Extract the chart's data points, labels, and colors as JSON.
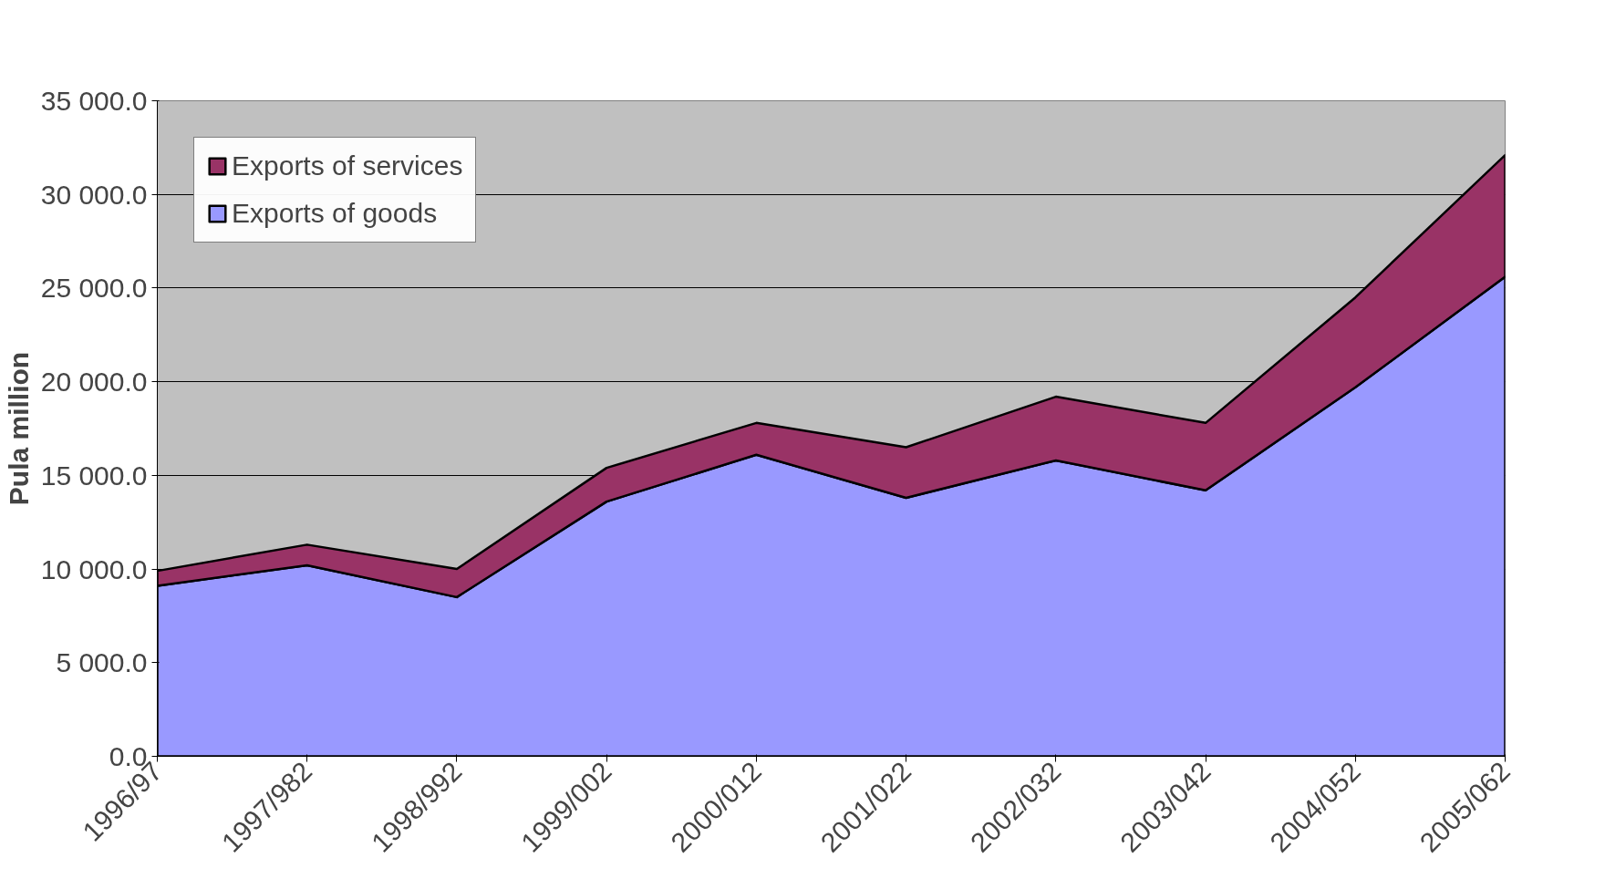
{
  "chart_data": {
    "type": "area",
    "stacked": true,
    "ylabel": "Pula million",
    "categories": [
      "1996/97",
      "1997/982",
      "1998/992",
      "1999/002",
      "2000/012",
      "2001/022",
      "2002/032",
      "2003/042",
      "2004/052",
      "2005/062"
    ],
    "series": [
      {
        "name": "Exports of goods",
        "color": "#9999ff",
        "values": [
          9100,
          10200,
          8500,
          13600,
          16100,
          13800,
          15800,
          14200,
          19700,
          25600
        ]
      },
      {
        "name": "Exports of services",
        "color": "#993366",
        "values": [
          800,
          1100,
          1500,
          1800,
          1700,
          2700,
          3400,
          3600,
          4800,
          6500
        ]
      }
    ],
    "ylim": [
      0,
      35000
    ],
    "yticks": [
      {
        "value": 0,
        "label": "0.0"
      },
      {
        "value": 5000,
        "label": "5 000.0"
      },
      {
        "value": 10000,
        "label": "10 000.0"
      },
      {
        "value": 15000,
        "label": "15 000.0"
      },
      {
        "value": 20000,
        "label": "20 000.0"
      },
      {
        "value": 25000,
        "label": "25 000.0"
      },
      {
        "value": 30000,
        "label": "30 000.0"
      },
      {
        "value": 35000,
        "label": "35 000.0"
      }
    ],
    "grid": "y",
    "legend": "top left"
  }
}
